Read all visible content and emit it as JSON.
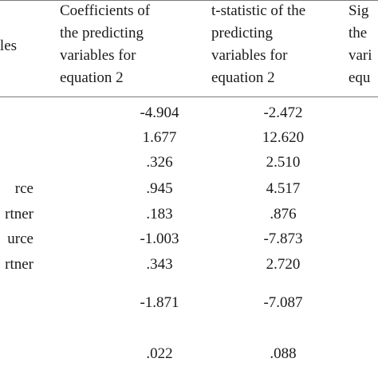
{
  "table": {
    "headers": {
      "variables": "ables",
      "coefficients": [
        "Coefficients of",
        "the predicting",
        "variables for",
        "equation 2"
      ],
      "tstatistic": [
        "t-statistic of the",
        "predicting",
        "variables for",
        "equation 2"
      ],
      "significance": [
        "Sig",
        "the",
        "vari",
        "equ"
      ]
    },
    "rows": [
      {
        "variable": "",
        "coefficient": "-4.904",
        "tstat": "-2.472"
      },
      {
        "variable": "",
        "coefficient": "1.677",
        "tstat": "12.620"
      },
      {
        "variable": "",
        "coefficient": ".326",
        "tstat": "2.510"
      },
      {
        "variable": "rce",
        "coefficient": ".945",
        "tstat": "4.517"
      },
      {
        "variable": "rtner",
        "coefficient": ".183",
        "tstat": ".876"
      },
      {
        "variable": "urce",
        "coefficient": "-1.003",
        "tstat": "-7.873"
      },
      {
        "variable": "rtner",
        "coefficient": ".343",
        "tstat": "2.720"
      },
      {
        "variable": "",
        "coefficient": "-1.871",
        "tstat": "-7.087"
      },
      {
        "variable": "",
        "coefficient": ".022",
        "tstat": ".088"
      }
    ]
  }
}
